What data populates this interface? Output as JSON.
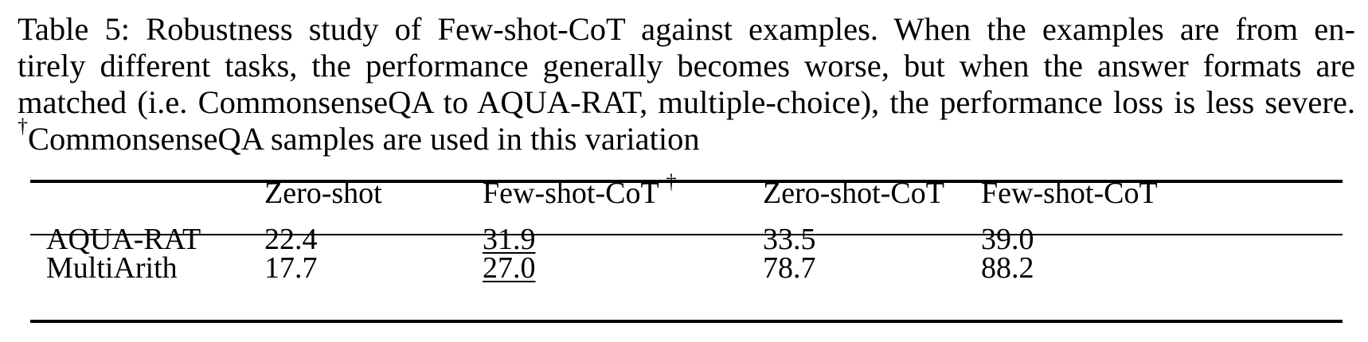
{
  "caption": {
    "lines": [
      "Table 5: Robustness study of Few-shot-CoT against examples. When the examples are from en-",
      "tirely different tasks, the performance generally becomes worse, but when the answer formats are",
      "matched (i.e. CommonsenseQA to AQUA-RAT, multiple-choice), the performance loss is less severe.",
      "CommonsenseQA samples are used in this variation"
    ],
    "dagger": "†"
  },
  "table": {
    "headers": [
      "",
      "Zero-shot",
      "Few-shot-CoT",
      "Zero-shot-CoT",
      "Few-shot-CoT"
    ],
    "header_dagger": "†",
    "rows": [
      {
        "dataset": "AQUA-RAT",
        "zero_shot": "22.4",
        "few_shot_cot_dagger": "31.9",
        "zero_shot_cot": "33.5",
        "few_shot_cot": "39.0"
      },
      {
        "dataset": "MultiArith",
        "zero_shot": "17.7",
        "few_shot_cot_dagger": "27.0",
        "zero_shot_cot": "78.7",
        "few_shot_cot": "88.2"
      }
    ]
  }
}
